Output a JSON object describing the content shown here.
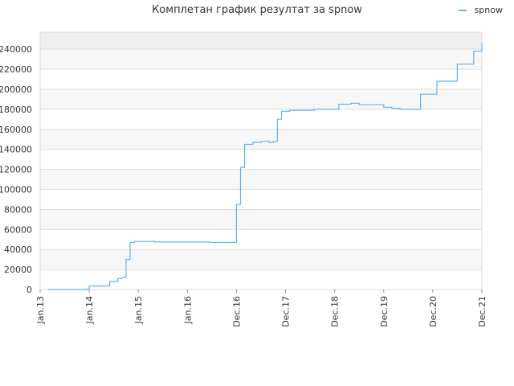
{
  "chart_data": {
    "type": "line",
    "title": "Комплетан график резултат за spnow",
    "xlabel": "",
    "ylabel": "",
    "grid": true,
    "legend_position": "top-right",
    "series_color": "#66b3ee",
    "band_colors": [
      "#efefef",
      "#f7f7f7",
      "#ffffff"
    ],
    "x_tick_labels": [
      "Jan.13",
      "Jan.14",
      "Jan.15",
      "Jan.16",
      "Dec.16",
      "Dec.17",
      "Dec.18",
      "Dec.19",
      "Dec.20",
      "Dec.21"
    ],
    "y_ticks": [
      0,
      20000,
      40000,
      60000,
      80000,
      100000,
      120000,
      140000,
      160000,
      180000,
      200000,
      220000,
      240000
    ],
    "ylim": [
      0,
      257000
    ],
    "x_tick_months": [
      "2013-01",
      "2014-01",
      "2015-01",
      "2016-01",
      "2016-12",
      "2017-12",
      "2018-12",
      "2019-12",
      "2020-12",
      "2021-12"
    ],
    "series": [
      {
        "name": "spnow",
        "points": [
          [
            "2013-03",
            0
          ],
          [
            "2013-12",
            300
          ],
          [
            "2014-01",
            3500
          ],
          [
            "2014-03",
            3500
          ],
          [
            "2014-06",
            8000
          ],
          [
            "2014-08",
            11000
          ],
          [
            "2014-09",
            12000
          ],
          [
            "2014-10",
            30000
          ],
          [
            "2014-11",
            47000
          ],
          [
            "2014-12",
            48000
          ],
          [
            "2015-04",
            48000
          ],
          [
            "2015-05",
            47500
          ],
          [
            "2016-05",
            47500
          ],
          [
            "2016-06",
            47000
          ],
          [
            "2016-11",
            47000
          ],
          [
            "2016-12",
            65000
          ],
          [
            "2016-12",
            85000
          ],
          [
            "2017-01",
            122000
          ],
          [
            "2017-02",
            145000
          ],
          [
            "2017-04",
            147000
          ],
          [
            "2017-06",
            148000
          ],
          [
            "2017-08",
            147000
          ],
          [
            "2017-09",
            148000
          ],
          [
            "2017-10",
            170000
          ],
          [
            "2017-11",
            178000
          ],
          [
            "2018-01",
            179000
          ],
          [
            "2018-06",
            179000
          ],
          [
            "2018-07",
            180000
          ],
          [
            "2018-12",
            180000
          ],
          [
            "2019-01",
            185000
          ],
          [
            "2019-04",
            186000
          ],
          [
            "2019-06",
            184500
          ],
          [
            "2019-12",
            182000
          ],
          [
            "2020-02",
            181000
          ],
          [
            "2020-04",
            180000
          ],
          [
            "2020-09",
            195000
          ],
          [
            "2021-01",
            208000
          ],
          [
            "2021-06",
            225000
          ],
          [
            "2021-10",
            238000
          ],
          [
            "2022-01",
            246000
          ]
        ]
      }
    ]
  }
}
